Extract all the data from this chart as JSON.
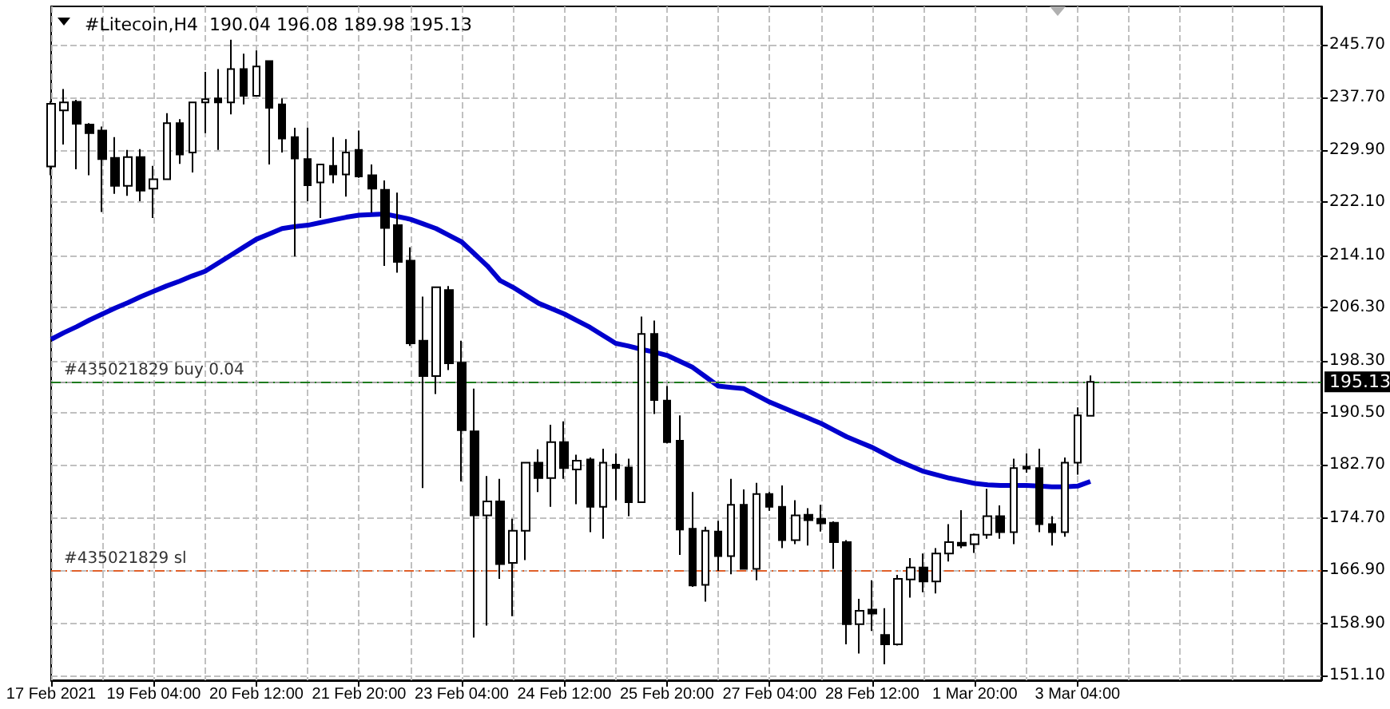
{
  "chart_data": {
    "type": "candlestick",
    "title": "#Litecoin,H4  190.04 196.08 189.98 195.13",
    "categories": [
      "17 Feb 2021",
      null,
      null,
      null,
      null,
      null,
      null,
      null,
      "19 Feb 04:00",
      null,
      null,
      null,
      null,
      null,
      null,
      null,
      "20 Feb 12:00",
      null,
      null,
      null,
      null,
      null,
      null,
      null,
      "21 Feb 20:00",
      null,
      null,
      null,
      null,
      null,
      null,
      null,
      "23 Feb 04:00",
      null,
      null,
      null,
      null,
      null,
      null,
      null,
      "24 Feb 12:00",
      null,
      null,
      null,
      null,
      null,
      null,
      null,
      "25 Feb 20:00",
      null,
      null,
      null,
      null,
      null,
      null,
      null,
      "27 Feb 04:00",
      null,
      null,
      null,
      null,
      null,
      null,
      null,
      "28 Feb 12:00",
      null,
      null,
      null,
      null,
      null,
      null,
      null,
      "1 Mar 20:00",
      null,
      null,
      null,
      null,
      null,
      null,
      null,
      "3 Mar 04:00",
      null
    ],
    "series": [
      {
        "color": "#000000",
        "ohlc": [
          [
            227.4,
            237.2,
            226.1,
            236.8
          ],
          [
            235.8,
            239.0,
            230.7,
            237.0
          ],
          [
            237.1,
            237.4,
            227.0,
            233.8
          ],
          [
            233.7,
            233.9,
            226.1,
            232.4
          ],
          [
            232.8,
            233.4,
            220.6,
            228.5
          ],
          [
            228.7,
            231.8,
            223.3,
            224.5
          ],
          [
            224.5,
            229.9,
            223.0,
            228.8
          ],
          [
            228.8,
            230.0,
            222.2,
            223.8
          ],
          [
            224.1,
            227.5,
            219.7,
            225.5
          ],
          [
            225.5,
            235.4,
            225.4,
            233.9
          ],
          [
            233.9,
            234.5,
            227.8,
            229.2
          ],
          [
            229.5,
            237.0,
            226.5,
            237.0
          ],
          [
            237.0,
            241.6,
            232.4,
            237.5
          ],
          [
            237.6,
            242.0,
            229.9,
            237.0
          ],
          [
            237.0,
            246.4,
            235.2,
            242.0
          ],
          [
            242.0,
            244.3,
            236.7,
            238.0
          ],
          [
            238.0,
            244.8,
            237.9,
            242.4
          ],
          [
            243.2,
            243.2,
            227.7,
            236.2
          ],
          [
            236.7,
            237.6,
            229.5,
            231.6
          ],
          [
            231.8,
            233.2,
            213.9,
            228.6
          ],
          [
            228.5,
            233.2,
            222.2,
            224.6
          ],
          [
            225.0,
            227.8,
            219.7,
            227.7
          ],
          [
            227.5,
            231.8,
            224.9,
            226.2
          ],
          [
            226.2,
            231.5,
            222.9,
            229.5
          ],
          [
            229.9,
            232.8,
            225.7,
            225.9
          ],
          [
            226.1,
            227.7,
            220.5,
            224.1
          ],
          [
            223.9,
            225.3,
            212.5,
            218.2
          ],
          [
            218.6,
            223.5,
            211.5,
            213.1
          ],
          [
            213.3,
            215.3,
            200.5,
            200.9
          ],
          [
            201.3,
            207.9,
            179.2,
            196.0
          ],
          [
            196.0,
            209.3,
            193.3,
            209.3
          ],
          [
            208.9,
            209.5,
            196.9,
            197.9
          ],
          [
            198.0,
            201.3,
            180.2,
            187.9
          ],
          [
            187.7,
            194.1,
            156.8,
            175.1
          ],
          [
            175.1,
            181.0,
            158.6,
            177.2
          ],
          [
            177.2,
            180.6,
            165.6,
            167.8
          ],
          [
            168.0,
            174.6,
            160.0,
            172.8
          ],
          [
            172.8,
            183.0,
            168.4,
            183.0
          ],
          [
            183.0,
            185.0,
            178.6,
            180.7
          ],
          [
            180.7,
            188.7,
            176.4,
            186.1
          ],
          [
            186.1,
            189.2,
            180.6,
            182.2
          ],
          [
            182.0,
            184.2,
            176.8,
            183.3
          ],
          [
            183.5,
            183.8,
            172.6,
            176.4
          ],
          [
            176.4,
            185.1,
            171.6,
            183.0
          ],
          [
            182.7,
            184.4,
            177.4,
            182.2
          ],
          [
            182.3,
            183.6,
            175.0,
            177.1
          ],
          [
            177.1,
            204.9,
            177.1,
            202.3
          ],
          [
            202.3,
            204.3,
            190.3,
            192.4
          ],
          [
            192.3,
            194.5,
            185.9,
            186.1
          ],
          [
            186.3,
            190.1,
            169.2,
            173.0
          ],
          [
            173.1,
            178.6,
            164.4,
            164.6
          ],
          [
            164.7,
            173.4,
            162.2,
            172.8
          ],
          [
            172.7,
            174.3,
            166.8,
            169.0
          ],
          [
            169.0,
            180.6,
            166.3,
            176.7
          ],
          [
            176.7,
            179.0,
            167.0,
            167.1
          ],
          [
            167.1,
            180.0,
            165.4,
            178.3
          ],
          [
            178.3,
            178.6,
            175.8,
            176.4
          ],
          [
            176.4,
            179.6,
            170.2,
            171.4
          ],
          [
            171.4,
            177.4,
            170.8,
            175.1
          ],
          [
            175.2,
            176.2,
            170.6,
            174.4
          ],
          [
            174.6,
            176.7,
            172.7,
            173.9
          ],
          [
            174.0,
            174.2,
            167.1,
            171.1
          ],
          [
            171.1,
            171.4,
            155.8,
            158.8
          ],
          [
            158.8,
            162.6,
            154.4,
            160.8
          ],
          [
            161.0,
            165.4,
            157.8,
            160.4
          ],
          [
            157.2,
            161.2,
            152.8,
            155.8
          ],
          [
            155.8,
            166.2,
            155.6,
            165.6
          ],
          [
            165.5,
            168.7,
            162.8,
            167.3
          ],
          [
            167.3,
            169.4,
            163.6,
            165.2
          ],
          [
            165.2,
            170.2,
            163.4,
            169.4
          ],
          [
            169.4,
            173.8,
            168.2,
            171.1
          ],
          [
            171.0,
            175.9,
            170.2,
            170.6
          ],
          [
            170.8,
            172.4,
            169.5,
            172.2
          ],
          [
            172.2,
            179.1,
            171.6,
            175.0
          ],
          [
            175.0,
            176.6,
            171.6,
            172.6
          ],
          [
            172.6,
            183.6,
            170.8,
            182.2
          ],
          [
            182.4,
            184.4,
            181.5,
            182.1
          ],
          [
            182.2,
            185.1,
            172.6,
            173.8
          ],
          [
            173.8,
            175.0,
            170.6,
            172.6
          ],
          [
            172.6,
            183.8,
            171.9,
            183.0
          ],
          [
            183.0,
            191.3,
            181.2,
            190.1
          ],
          [
            190.04,
            196.08,
            189.98,
            195.13
          ]
        ]
      },
      {
        "type": "line",
        "color": "#0000cd",
        "marker": "none",
        "values": [
          201.5,
          202.5,
          203.4,
          204.4,
          205.3,
          206.2,
          207.0,
          207.9,
          208.7,
          209.5,
          210.2,
          211.0,
          211.7,
          212.9,
          214.1,
          215.3,
          216.5,
          217.3,
          218.1,
          218.4,
          218.6,
          219.0,
          219.4,
          219.8,
          220.1,
          220.2,
          220.3,
          219.9,
          219.5,
          218.8,
          218.1,
          217.1,
          216.1,
          214.3,
          212.5,
          210.3,
          209.3,
          208.1,
          206.9,
          206.1,
          205.3,
          204.3,
          203.3,
          202.1,
          200.9,
          200.5,
          200.0,
          199.6,
          199.1,
          198.2,
          197.3,
          195.9,
          194.5,
          194.3,
          194.1,
          193.1,
          192.1,
          191.3,
          190.5,
          189.7,
          188.9,
          187.9,
          186.9,
          186.1,
          185.3,
          184.3,
          183.3,
          182.5,
          181.7,
          181.2,
          180.7,
          180.3,
          179.9,
          179.7,
          179.6,
          179.6,
          179.6,
          179.5,
          179.4,
          179.4,
          179.5,
          180.2
        ]
      }
    ],
    "ref_lines": [
      {
        "axis": "y",
        "value": 195.13,
        "label": "195.13",
        "color": "#a0a0a0",
        "line_style": "solid"
      },
      {
        "axis": "y",
        "value": 195.13,
        "label": "#435021829 buy 0.04",
        "color": "#1e7b1e",
        "line_style": "dashed"
      },
      {
        "axis": "y",
        "value": 166.9,
        "label": "#435021829 sl",
        "color": "#e0602a",
        "line_style": "dashed"
      }
    ],
    "ylim": [
      150.4,
      251.4
    ],
    "yticks": [
      {
        "value": 151.1,
        "label": "151.10"
      },
      {
        "value": 158.9,
        "label": "158.90"
      },
      {
        "value": 166.9,
        "label": "166.90"
      },
      {
        "value": 174.7,
        "label": "174.70"
      },
      {
        "value": 182.7,
        "label": "182.70"
      },
      {
        "value": 190.5,
        "label": "190.50"
      },
      {
        "value": 198.3,
        "label": "198.30"
      },
      {
        "value": 206.3,
        "label": "206.30"
      },
      {
        "value": 214.1,
        "label": "214.10"
      },
      {
        "value": 222.1,
        "label": "222.10"
      },
      {
        "value": 229.9,
        "label": "229.90"
      },
      {
        "value": 237.7,
        "label": "237.70"
      },
      {
        "value": 245.7,
        "label": "245.70"
      }
    ],
    "grid": true
  }
}
